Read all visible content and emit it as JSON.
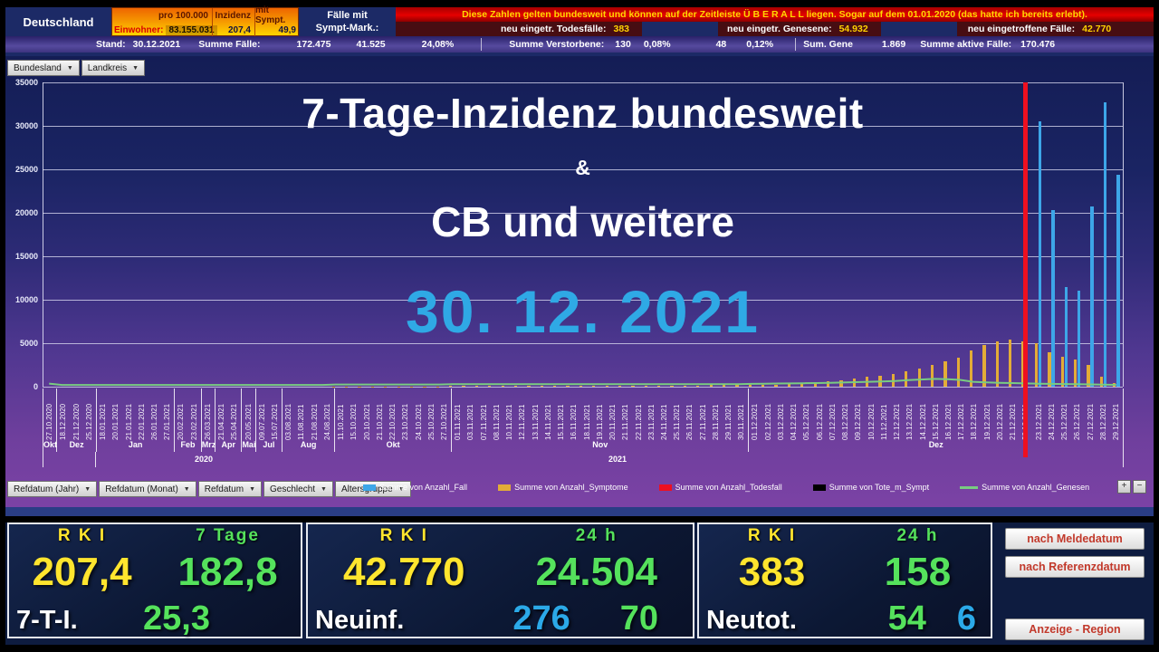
{
  "header": {
    "country": "Deutschland",
    "box": {
      "pro": "pro 100.000",
      "inzidenz_label": "Inzidenz",
      "mit_sympt_label": "mit Sympt.",
      "einwohner_label": "Einwohner:",
      "einwohner": "83.155.031",
      "inzidenz": "207,4",
      "mit_sympt": "49,9"
    },
    "faelle_mit": "Fälle mit",
    "sympt_mark": "Sympt-Mark.:",
    "banner": "Diese Zahlen gelten bundesweit und können auf der Zeitleiste Ü B E R A L L liegen. Sogar auf dem 01.01.2020 (das hatte ich bereits erlebt).",
    "new_entries": [
      {
        "label": "neu eingetr. Todesfälle:",
        "value": "383"
      },
      {
        "label": "neu eingetr. Genesene:",
        "value": "54.932"
      },
      {
        "label": "neu eingetroffene Fälle:",
        "value": "42.770"
      }
    ],
    "stand": {
      "stand_label": "Stand:",
      "stand_date": "30.12.2021",
      "summe_faelle_label": "Summe Fälle:",
      "summe_faelle": "172.475",
      "sympt_cases": "41.525",
      "sympt_share": "24,08%",
      "verstorbene_label": "Summe Verstorbene:",
      "verstorbene": "130",
      "verstorbene_share": "0,08%",
      "tote_sympt": "48",
      "tote_sympt_share": "0,12%",
      "sum_gene_label": "Sum. Gene",
      "sum_gene": "1.869",
      "aktive_label": "Summe aktive Fälle:",
      "aktive": "170.476"
    }
  },
  "pivot_fields": [
    "Bundesland",
    "Landkreis"
  ],
  "filter_fields": [
    "Refdatum (Jahr)",
    "Refdatum (Monat)",
    "Refdatum",
    "Geschlecht",
    "Altersgruppe"
  ],
  "zoom_controls": [
    "+",
    "−"
  ],
  "overlay": {
    "title": "7-Tage-Inzidenz bundesweit",
    "amp": "&",
    "subtitle": "CB und weitere",
    "date": "30. 12. 2021"
  },
  "chart_data": {
    "type": "bar",
    "title": "7-Tage-Inzidenz bundesweit & CB und weitere 30.12.2021",
    "ylim": [
      0,
      35000
    ],
    "ytick_labels": [
      "35000",
      "30000",
      "25000",
      "20000",
      "15000",
      "10000",
      "5000",
      "0"
    ],
    "grid": true,
    "legend_position": "bottom",
    "categories": [
      "27.10.2020",
      "18.12.2020",
      "21.12.2020",
      "25.12.2020",
      "18.01.2021",
      "20.01.2021",
      "21.01.2021",
      "22.01.2021",
      "26.01.2021",
      "27.01.2021",
      "20.02.2021",
      "23.02.2021",
      "26.03.2021",
      "21.04.2021",
      "25.04.2021",
      "20.05.2021",
      "09.07.2021",
      "15.07.2021",
      "03.08.2021",
      "11.08.2021",
      "21.08.2021",
      "24.08.2021",
      "11.10.2021",
      "15.10.2021",
      "20.10.2021",
      "21.10.2021",
      "22.10.2021",
      "23.10.2021",
      "24.10.2021",
      "25.10.2021",
      "27.10.2021",
      "01.11.2021",
      "03.11.2021",
      "07.11.2021",
      "08.11.2021",
      "10.11.2021",
      "12.11.2021",
      "13.11.2021",
      "14.11.2021",
      "15.11.2021",
      "16.11.2021",
      "18.11.2021",
      "19.11.2021",
      "20.11.2021",
      "21.11.2021",
      "22.11.2021",
      "23.11.2021",
      "24.11.2021",
      "25.11.2021",
      "26.11.2021",
      "27.11.2021",
      "28.11.2021",
      "29.11.2021",
      "30.11.2021",
      "01.12.2021",
      "02.12.2021",
      "03.12.2021",
      "04.12.2021",
      "05.12.2021",
      "06.12.2021",
      "07.12.2021",
      "08.12.2021",
      "09.12.2021",
      "10.12.2021",
      "11.12.2021",
      "12.12.2021",
      "13.12.2021",
      "14.12.2021",
      "15.12.2021",
      "16.12.2021",
      "17.12.2021",
      "18.12.2021",
      "19.12.2021",
      "20.12.2021",
      "21.12.2021",
      "22.12.2021",
      "23.12.2021",
      "24.12.2021",
      "25.12.2021",
      "26.12.2021",
      "27.12.2021",
      "28.12.2021",
      "29.12.2021"
    ],
    "month_groups": [
      {
        "label": "Okt",
        "count": 1
      },
      {
        "label": "Dez",
        "count": 3
      },
      {
        "label": "Jan",
        "count": 6
      },
      {
        "label": "Feb",
        "count": 2
      },
      {
        "label": "Mrz",
        "count": 1
      },
      {
        "label": "Apr",
        "count": 2
      },
      {
        "label": "Mai",
        "count": 1
      },
      {
        "label": "Jul",
        "count": 2
      },
      {
        "label": "Aug",
        "count": 4
      },
      {
        "label": "Okt",
        "count": 9
      },
      {
        "label": "Nov",
        "count": 23
      },
      {
        "label": "Dez",
        "count": 29
      }
    ],
    "year_groups": [
      {
        "label": "2020",
        "count": 4
      },
      {
        "label": "2021",
        "count": 79
      }
    ],
    "marker_line": {
      "category": "22.12.2021",
      "color": "#ee1020"
    },
    "series": [
      {
        "key": "anzahl_fall",
        "name": "Summe von Anzahl_Fall",
        "color": "#3da6e8",
        "render": "bar",
        "lane": "right",
        "legend_shape": "rect",
        "values": [
          0,
          0,
          0,
          0,
          0,
          0,
          0,
          0,
          0,
          0,
          0,
          0,
          0,
          0,
          0,
          0,
          0,
          0,
          0,
          0,
          0,
          0,
          0,
          0,
          0,
          0,
          0,
          0,
          0,
          0,
          0,
          0,
          0,
          0,
          0,
          0,
          0,
          0,
          0,
          0,
          0,
          0,
          0,
          0,
          0,
          0,
          0,
          0,
          0,
          0,
          0,
          0,
          0,
          0,
          0,
          0,
          0,
          0,
          0,
          0,
          0,
          0,
          0,
          0,
          0,
          0,
          0,
          0,
          0,
          0,
          0,
          0,
          0,
          0,
          0,
          0,
          30500,
          20300,
          11500,
          11000,
          20700,
          32700,
          24400
        ]
      },
      {
        "key": "anzahl_symptome",
        "name": "Summe von Anzahl_Symptome",
        "color": "#e3ac38",
        "render": "bar",
        "lane": "left",
        "legend_shape": "rect",
        "values": [
          0,
          0,
          0,
          0,
          0,
          0,
          0,
          0,
          0,
          0,
          0,
          0,
          0,
          0,
          0,
          0,
          0,
          0,
          0,
          0,
          0,
          0,
          30,
          30,
          30,
          40,
          40,
          40,
          50,
          50,
          50,
          60,
          60,
          70,
          70,
          80,
          80,
          90,
          90,
          100,
          100,
          110,
          110,
          120,
          120,
          130,
          130,
          140,
          140,
          150,
          150,
          160,
          160,
          170,
          180,
          220,
          260,
          320,
          400,
          480,
          580,
          750,
          900,
          1100,
          1300,
          1500,
          1800,
          2100,
          2500,
          2900,
          3300,
          4200,
          4800,
          5200,
          5400,
          5200,
          5000,
          4000,
          3400,
          3100,
          2500,
          1100,
          400
        ]
      },
      {
        "key": "anzahl_todesfall",
        "name": "Summe von Anzahl_Todesfall",
        "color": "#ee1020",
        "render": "marker",
        "legend_shape": "rect",
        "values": [
          0,
          0,
          0,
          0,
          0,
          0,
          0,
          0,
          0,
          0,
          0,
          0,
          0,
          0,
          0,
          0,
          0,
          0,
          0,
          0,
          0,
          0,
          0,
          0,
          0,
          0,
          0,
          0,
          0,
          0,
          0,
          0,
          0,
          0,
          0,
          0,
          0,
          0,
          0,
          0,
          0,
          0,
          0,
          0,
          0,
          0,
          0,
          0,
          0,
          0,
          0,
          0,
          0,
          0,
          0,
          0,
          0,
          0,
          0,
          0,
          0,
          0,
          0,
          0,
          0,
          0,
          0,
          0,
          0,
          0,
          0,
          0,
          0,
          0,
          0,
          0,
          0,
          0,
          0,
          0,
          0,
          0,
          0
        ]
      },
      {
        "key": "tote_m_sympt",
        "name": "Summe von Tote_m_Sympt",
        "color": "#000000",
        "render": "bar",
        "lane": "right",
        "legend_shape": "rect",
        "values": [
          0,
          0,
          0,
          0,
          0,
          0,
          0,
          0,
          0,
          0,
          0,
          0,
          0,
          0,
          0,
          0,
          0,
          0,
          0,
          0,
          0,
          0,
          0,
          0,
          0,
          0,
          0,
          0,
          0,
          0,
          0,
          0,
          0,
          0,
          0,
          0,
          0,
          0,
          0,
          0,
          0,
          0,
          0,
          0,
          0,
          0,
          0,
          0,
          0,
          0,
          0,
          0,
          0,
          0,
          0,
          0,
          0,
          0,
          0,
          0,
          0,
          0,
          0,
          0,
          0,
          0,
          0,
          0,
          0,
          0,
          0,
          0,
          0,
          0,
          0,
          0,
          0,
          0,
          0,
          0,
          0,
          0,
          0
        ]
      },
      {
        "key": "anzahl_genesen",
        "name": "Summe von Anzahl_Genesen",
        "color": "#79cc81",
        "render": "line",
        "legend_shape": "line",
        "values": [
          350,
          200,
          200,
          200,
          200,
          200,
          200,
          200,
          200,
          200,
          200,
          200,
          200,
          200,
          200,
          200,
          200,
          200,
          200,
          200,
          200,
          200,
          250,
          250,
          250,
          250,
          250,
          250,
          250,
          250,
          250,
          280,
          280,
          280,
          280,
          280,
          280,
          280,
          280,
          280,
          280,
          280,
          280,
          280,
          280,
          280,
          280,
          280,
          280,
          280,
          280,
          280,
          280,
          280,
          320,
          340,
          360,
          380,
          400,
          420,
          450,
          480,
          520,
          560,
          600,
          650,
          750,
          820,
          900,
          860,
          780,
          560,
          500,
          450,
          420,
          380,
          340,
          320,
          300,
          280,
          260,
          230,
          210
        ]
      }
    ]
  },
  "cards": [
    {
      "col1_header": "R K I",
      "col2_header": "7 Tage",
      "col1_value": "207,4",
      "col2_value": "182,8",
      "row_label": "7-T-I.",
      "extras": [
        {
          "text": "25,3",
          "color": "green"
        }
      ]
    },
    {
      "col1_header": "R K I",
      "col2_header": "24 h",
      "col1_value": "42.770",
      "col2_value": "24.504",
      "row_label": "Neuinf.",
      "extras": [
        {
          "text": "276",
          "color": "cyan"
        },
        {
          "text": "70",
          "color": "green"
        }
      ]
    },
    {
      "col1_header": "R K I",
      "col2_header": "24 h",
      "col1_value": "383",
      "col2_value": "158",
      "row_label": "Neutot.",
      "extras": [
        {
          "text": "54",
          "color": "green"
        },
        {
          "text": "6",
          "color": "cyan"
        }
      ]
    }
  ],
  "side_buttons": [
    "nach Meldedatum",
    "nach Referenzdatum",
    "Anzeige - Region"
  ],
  "palette": {
    "yellow": "#ffe52e",
    "green": "#55e25c",
    "cyan": "#2ba9e8",
    "accent_blue": "#2fa9e5",
    "marker_red": "#ee1020",
    "bar_blue": "#3da6e8",
    "bar_yellow": "#e3ac38",
    "line_green": "#79cc81"
  }
}
